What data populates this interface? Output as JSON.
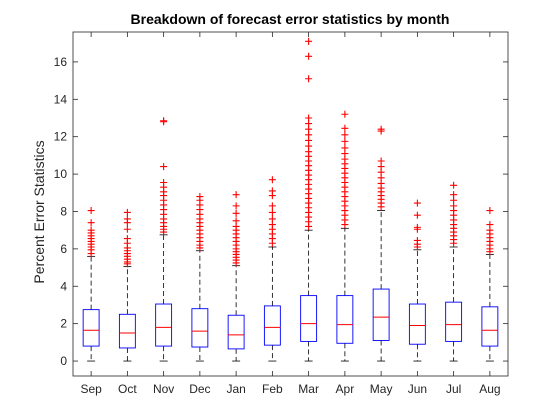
{
  "chart_data": {
    "type": "box",
    "title": "Breakdown of forecast error statistics by month",
    "xlabel": "",
    "ylabel": "Percent Error Statistics",
    "ylim": [
      -0.8,
      17.6
    ],
    "yticks": [
      0,
      2,
      4,
      6,
      8,
      10,
      12,
      14,
      16
    ],
    "grid": false,
    "colors": {
      "box": "#0000ff",
      "median": "#ff0000",
      "whisker": "#000000",
      "outlier": "#ff0000",
      "axis": "#262626"
    },
    "categories": [
      "Sep",
      "Oct",
      "Nov",
      "Dec",
      "Jan",
      "Feb",
      "Mar",
      "Apr",
      "May",
      "Jun",
      "Jul",
      "Aug"
    ],
    "boxes": [
      {
        "month": "Sep",
        "min": 0.0,
        "q1": 0.8,
        "median": 1.65,
        "q3": 2.75,
        "max": 5.6,
        "outliers": [
          5.75,
          5.95,
          6.1,
          6.25,
          6.4,
          6.55,
          6.7,
          6.85,
          7.0,
          7.4,
          8.05
        ]
      },
      {
        "month": "Oct",
        "min": 0.0,
        "q1": 0.7,
        "median": 1.5,
        "q3": 2.5,
        "max": 5.05,
        "outliers": [
          5.2,
          5.3,
          5.45,
          5.6,
          5.75,
          5.9,
          6.05,
          6.3,
          6.55,
          7.05,
          7.4,
          7.6,
          7.95
        ]
      },
      {
        "month": "Nov",
        "min": 0.0,
        "q1": 0.8,
        "median": 1.8,
        "q3": 3.05,
        "max": 6.75,
        "outliers": [
          6.9,
          7.05,
          7.2,
          7.4,
          7.6,
          7.85,
          8.1,
          8.35,
          8.6,
          8.85,
          9.05,
          9.3,
          9.55,
          10.4,
          12.8,
          12.85
        ]
      },
      {
        "month": "Dec",
        "min": 0.0,
        "q1": 0.75,
        "median": 1.6,
        "q3": 2.8,
        "max": 5.9,
        "outliers": [
          6.05,
          6.2,
          6.4,
          6.6,
          6.8,
          7.0,
          7.2,
          7.4,
          7.6,
          7.85,
          8.1,
          8.35,
          8.6,
          8.8
        ]
      },
      {
        "month": "Jan",
        "min": 0.0,
        "q1": 0.65,
        "median": 1.4,
        "q3": 2.45,
        "max": 5.1,
        "outliers": [
          5.25,
          5.4,
          5.55,
          5.7,
          5.85,
          6.0,
          6.2,
          6.4,
          6.6,
          6.8,
          7.0,
          7.2,
          7.5,
          7.9,
          8.3,
          8.9
        ]
      },
      {
        "month": "Feb",
        "min": 0.0,
        "q1": 0.85,
        "median": 1.8,
        "q3": 2.95,
        "max": 6.1,
        "outliers": [
          6.3,
          6.55,
          6.8,
          7.05,
          7.3,
          7.6,
          7.95,
          8.3,
          8.85,
          9.1,
          9.7
        ]
      },
      {
        "month": "Mar",
        "min": 0.0,
        "q1": 1.05,
        "median": 2.0,
        "q3": 3.5,
        "max": 7.0,
        "outliers": [
          7.2,
          7.45,
          7.7,
          7.95,
          8.2,
          8.45,
          8.7,
          8.95,
          9.2,
          9.45,
          9.7,
          9.95,
          10.2,
          10.45,
          10.7,
          10.95,
          11.2,
          11.5,
          11.8,
          12.1,
          12.4,
          12.7,
          13.0,
          15.1,
          16.3,
          17.1
        ]
      },
      {
        "month": "Apr",
        "min": 0.0,
        "q1": 0.95,
        "median": 1.95,
        "q3": 3.5,
        "max": 7.1,
        "outliers": [
          7.3,
          7.55,
          7.8,
          8.05,
          8.3,
          8.55,
          8.8,
          9.05,
          9.3,
          9.55,
          9.8,
          10.05,
          10.3,
          10.55,
          10.8,
          11.1,
          11.4,
          11.75,
          12.1,
          12.45,
          13.2
        ]
      },
      {
        "month": "May",
        "min": 0.0,
        "q1": 1.1,
        "median": 2.35,
        "q3": 3.85,
        "max": 8.05,
        "outliers": [
          8.25,
          8.45,
          8.65,
          8.85,
          9.05,
          9.25,
          9.5,
          9.8,
          10.1,
          10.4,
          10.7,
          12.3,
          12.4
        ]
      },
      {
        "month": "Jun",
        "min": 0.0,
        "q1": 0.9,
        "median": 1.9,
        "q3": 3.05,
        "max": 5.95,
        "outliers": [
          6.1,
          6.25,
          6.45,
          7.05,
          7.15,
          7.8,
          8.45
        ]
      },
      {
        "month": "Jul",
        "min": 0.0,
        "q1": 1.05,
        "median": 1.95,
        "q3": 3.15,
        "max": 6.1,
        "outliers": [
          6.3,
          6.5,
          6.7,
          6.9,
          7.1,
          7.3,
          7.55,
          7.8,
          8.05,
          8.3,
          8.6,
          8.9,
          9.4
        ]
      },
      {
        "month": "Aug",
        "min": 0.0,
        "q1": 0.8,
        "median": 1.65,
        "q3": 2.9,
        "max": 5.7,
        "outliers": [
          5.85,
          6.0,
          6.2,
          6.4,
          6.6,
          6.8,
          7.0,
          7.3,
          8.05
        ]
      }
    ]
  }
}
